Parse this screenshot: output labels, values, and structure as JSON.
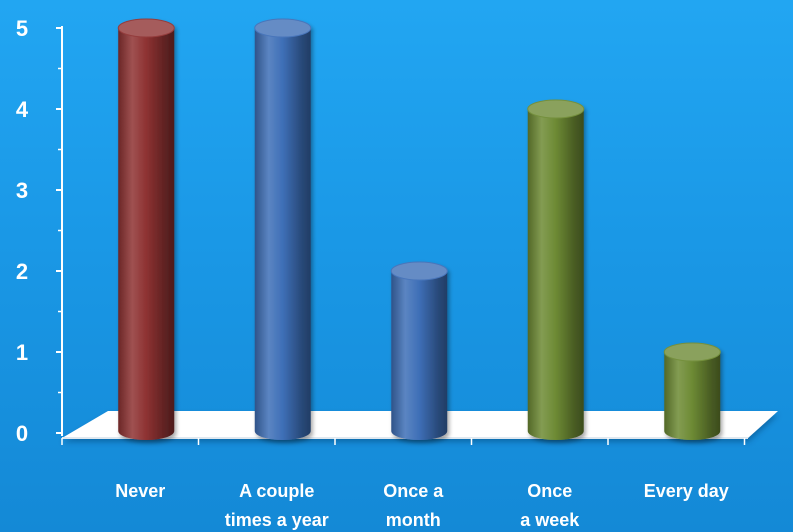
{
  "chart_data": {
    "type": "bar",
    "title": "",
    "xlabel": "",
    "ylabel": "",
    "categories": [
      [
        "Never"
      ],
      [
        "A couple",
        "times a year"
      ],
      [
        "Once a",
        "month"
      ],
      [
        "Once",
        "a week"
      ],
      [
        "Every day"
      ]
    ],
    "values": [
      5,
      5,
      2,
      4,
      1
    ],
    "bar_colors": [
      "#8e3232",
      "#3e6fb7",
      "#3e6fb7",
      "#6d8a34",
      "#6d8a34"
    ],
    "ylim": [
      0,
      5
    ],
    "yticks": [
      0,
      1,
      2,
      3,
      4,
      5
    ],
    "grid": false,
    "legend": "none",
    "style": "3d-cylinder",
    "floor_color": "#ffffff"
  }
}
